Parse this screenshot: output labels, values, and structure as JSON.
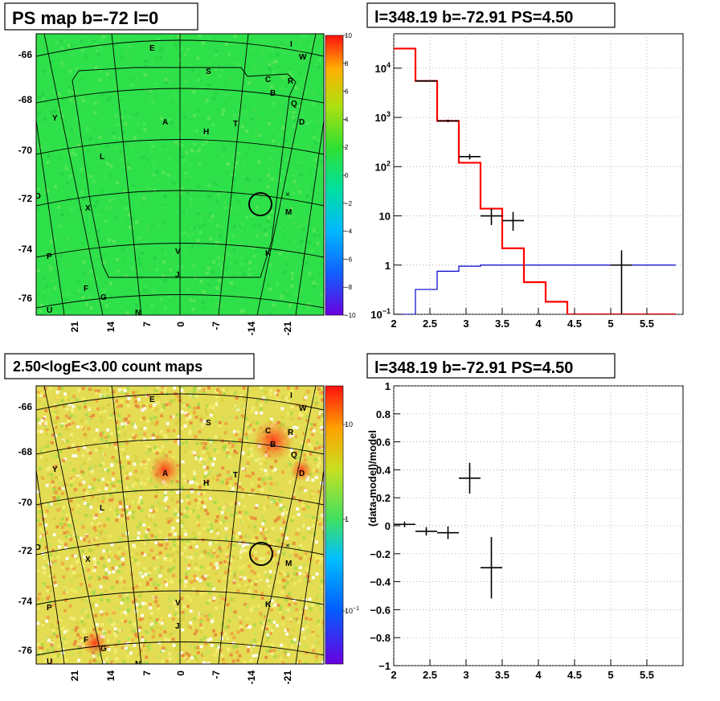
{
  "colors": {
    "histogram_line": "#ff0000",
    "model_line": "#0000cc",
    "data_marker": "#000000",
    "frame": "#000000",
    "ps_map_fill": "#2ee04a",
    "count_map_fill": "#e8e050"
  },
  "panels": [
    {
      "title": "PS map b=-72 l=0",
      "type": "heatmap",
      "ytick_labels": [
        "-66",
        "-68",
        "-70",
        "-72",
        "-74",
        "-76"
      ],
      "xtick_labels": [
        "21",
        "14",
        "7",
        "0",
        "-7",
        "-14",
        "-21"
      ],
      "colorbar_ticks": [
        "10",
        "8",
        "6",
        "4",
        "2",
        "0",
        "−2",
        "−4",
        "−6",
        "−8",
        "−10"
      ],
      "source_labels": [
        "E",
        "I",
        "W",
        "S",
        "C",
        "R",
        "B",
        "Q",
        "D",
        "A",
        "H",
        "T",
        "Y",
        "L",
        "O",
        "X",
        "M",
        "P",
        "V",
        "K",
        "J",
        "F",
        "G",
        "U",
        "N"
      ]
    },
    {
      "title": "l=348.19 b=-72.91 PS=4.50",
      "type": "step",
      "yscale": "log",
      "xlim": [
        2,
        6
      ],
      "ylim": [
        0.1,
        50000
      ],
      "xtick_labels": [
        "2",
        "2.5",
        "3",
        "3.5",
        "4",
        "4.5",
        "5",
        "5.5"
      ],
      "ytick_labels": [
        "10^4",
        "10^3",
        "10^2",
        "10",
        "1",
        "10^-1"
      ]
    },
    {
      "title": "2.50<logE<3.00 count maps",
      "type": "heatmap",
      "ytick_labels": [
        "-66",
        "-68",
        "-70",
        "-72",
        "-74",
        "-76"
      ],
      "xtick_labels": [
        "21",
        "14",
        "7",
        "0",
        "-7",
        "-14",
        "-21"
      ],
      "colorbar_ticks": [
        "10",
        "1",
        "10^-1"
      ],
      "source_labels": [
        "E",
        "I",
        "W",
        "S",
        "C",
        "R",
        "B",
        "Q",
        "D",
        "A",
        "H",
        "T",
        "Y",
        "L",
        "O",
        "X",
        "M",
        "P",
        "V",
        "K",
        "J",
        "F",
        "G",
        "U",
        "N"
      ]
    },
    {
      "title": "l=348.19 b=-72.91 PS=4.50",
      "type": "scatter",
      "ylabel": "(data-model)/model",
      "xlim": [
        2,
        6
      ],
      "ylim": [
        -1,
        1
      ],
      "xtick_labels": [
        "2",
        "2.5",
        "3",
        "3.5",
        "4",
        "4.5",
        "5",
        "5.5"
      ],
      "ytick_labels": [
        "1",
        "0.8",
        "0.6",
        "0.4",
        "0.2",
        "0",
        "−0.2",
        "−0.4",
        "−0.6",
        "−0.8",
        "−1"
      ]
    }
  ],
  "chart_data": [
    {
      "type": "heatmap",
      "title": "PS map b=-72 l=0",
      "color_range": [
        -10,
        10
      ],
      "grid": true
    },
    {
      "type": "line",
      "title": "l=348.19 b=-72.91 PS=4.50",
      "yscale": "log",
      "xlim": [
        2,
        6
      ],
      "ylim": [
        0.1,
        50000
      ],
      "grid": true,
      "series": [
        {
          "kind": "step",
          "bin_edges": [
            2.0,
            2.3,
            2.6,
            2.9,
            3.2,
            3.5,
            3.8,
            4.1,
            4.4,
            4.7,
            5.0,
            5.3,
            5.6,
            5.9
          ],
          "values": [
            25000,
            5500,
            850,
            120,
            14,
            2.2,
            0.45,
            0.18,
            0.1,
            0.1,
            0.1,
            0.1,
            0.1
          ]
        },
        {
          "kind": "step",
          "bin_edges": [
            2.0,
            2.3,
            2.6,
            2.9,
            3.2,
            3.5,
            3.8,
            4.1,
            4.4,
            4.7,
            5.0,
            5.3,
            5.6,
            5.9
          ],
          "values": [
            0.05,
            0.32,
            0.75,
            0.95,
            1.0,
            1.0,
            1.0,
            1.0,
            1.0,
            1.0,
            1.0,
            1.0,
            1.0
          ]
        },
        {
          "kind": "points",
          "points": [
            {
              "x": 2.45,
              "y": 5500,
              "xerr": 0.15,
              "ylo": 5300,
              "yhi": 5700
            },
            {
              "x": 2.75,
              "y": 850,
              "xerr": 0.15,
              "ylo": 800,
              "yhi": 900
            },
            {
              "x": 3.05,
              "y": 160,
              "xerr": 0.15,
              "ylo": 140,
              "yhi": 180
            },
            {
              "x": 3.35,
              "y": 10,
              "xerr": 0.15,
              "ylo": 6.5,
              "yhi": 14
            },
            {
              "x": 3.65,
              "y": 8,
              "xerr": 0.15,
              "ylo": 5,
              "yhi": 12
            },
            {
              "x": 5.15,
              "y": 1,
              "xerr": 0.15,
              "ylo": 0.1,
              "yhi": 2
            }
          ]
        }
      ]
    },
    {
      "type": "heatmap",
      "title": "2.50<logE<3.00 count maps",
      "color_scale": "log",
      "color_range": [
        0.05,
        20
      ],
      "grid": true
    },
    {
      "type": "scatter",
      "title": "l=348.19 b=-72.91 PS=4.50",
      "ylabel": "(data-model)/model",
      "xlim": [
        2,
        6
      ],
      "ylim": [
        -1,
        1
      ],
      "grid": true,
      "points": [
        {
          "x": 2.15,
          "y": 0.01,
          "xerr": 0.15,
          "yerr": 0.02
        },
        {
          "x": 2.45,
          "y": -0.04,
          "xerr": 0.15,
          "yerr": 0.03
        },
        {
          "x": 2.75,
          "y": -0.05,
          "xerr": 0.15,
          "yerr": 0.045
        },
        {
          "x": 3.05,
          "y": 0.34,
          "xerr": 0.15,
          "yerr": 0.11
        },
        {
          "x": 3.35,
          "y": -0.3,
          "xerr": 0.15,
          "yerr": 0.22
        }
      ]
    }
  ]
}
